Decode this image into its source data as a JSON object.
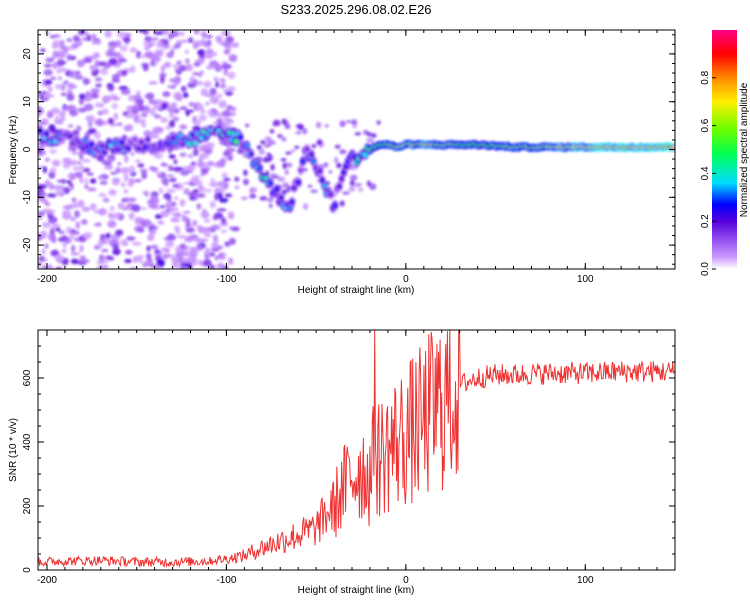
{
  "chart_data": [
    {
      "type": "heatmap",
      "title": "S233.2025.296.08.02.E26",
      "xlabel": "Height of straight line (km)",
      "ylabel": "Frequency (Hz)",
      "xlim": [
        -205,
        150
      ],
      "ylim": [
        -25,
        25
      ],
      "xticks": [
        -200,
        -100,
        0,
        100
      ],
      "yticks": [
        -20,
        -10,
        0,
        10,
        20
      ],
      "colorbar": {
        "label": "Normalized spectral amplitude",
        "range": [
          0.0,
          1.0
        ],
        "ticks": [
          "0.0",
          "0.2",
          "0.4",
          "0.6",
          "0.8"
        ]
      },
      "signal_track": {
        "x": [
          -200,
          -190,
          -180,
          -170,
          -160,
          -150,
          -140,
          -130,
          -120,
          -110,
          -100,
          -95,
          -90,
          -85,
          -80,
          -75,
          -70,
          -65,
          -60,
          -55,
          -50,
          -45,
          -40,
          -35,
          -30,
          -25,
          -20,
          -15,
          -10,
          -5,
          0,
          10,
          20,
          40,
          60,
          80,
          100,
          120,
          150
        ],
        "frequency_hz": [
          3,
          2,
          1,
          0,
          1,
          1,
          1,
          2,
          2,
          3,
          3,
          3,
          1,
          -2,
          -5,
          -8,
          -10,
          -12,
          -6,
          0,
          -3,
          -8,
          -12,
          -4,
          -2,
          -1,
          0,
          1,
          1,
          0.5,
          1,
          1,
          1,
          1,
          0.5,
          0.5,
          0.5,
          0.5,
          0.5
        ],
        "amplitude": [
          0.3,
          0.25,
          0.25,
          0.3,
          0.3,
          0.2,
          0.2,
          0.25,
          0.3,
          0.35,
          0.35,
          0.4,
          0.3,
          0.3,
          0.35,
          0.3,
          0.25,
          0.3,
          0.2,
          0.25,
          0.25,
          0.3,
          0.25,
          0.3,
          0.35,
          0.45,
          0.5,
          0.55,
          0.6,
          0.6,
          0.65,
          0.7,
          0.6,
          0.55,
          0.6,
          0.65,
          0.75,
          0.8,
          0.85
        ]
      }
    },
    {
      "type": "line",
      "xlabel": "Height of straight line (km)",
      "ylabel": "SNR (10 * v/v)",
      "xlim": [
        -205,
        150
      ],
      "ylim": [
        0,
        750
      ],
      "xticks": [
        -200,
        -100,
        0,
        100
      ],
      "yticks": [
        0,
        200,
        400,
        600
      ],
      "series": [
        {
          "name": "SNR",
          "color": "#ee3333",
          "x": [
            -205,
            -190,
            -170,
            -150,
            -130,
            -110,
            -100,
            -90,
            -80,
            -70,
            -60,
            -50,
            -45,
            -40,
            -35,
            -30,
            -25,
            -20,
            -18,
            -15,
            -10,
            -5,
            0,
            5,
            10,
            15,
            20,
            25,
            30,
            40,
            50,
            60,
            80,
            100,
            120,
            150
          ],
          "y": [
            25,
            28,
            30,
            25,
            25,
            28,
            35,
            45,
            70,
            90,
            110,
            130,
            170,
            200,
            250,
            300,
            320,
            290,
            340,
            350,
            380,
            400,
            420,
            440,
            460,
            500,
            520,
            560,
            580,
            600,
            610,
            610,
            615,
            615,
            620,
            620
          ]
        }
      ]
    }
  ]
}
